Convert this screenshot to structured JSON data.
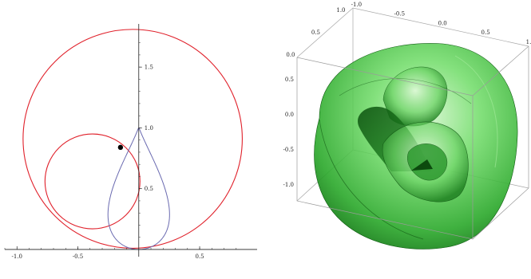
{
  "left_plot": {
    "x_ticks": [
      {
        "value": -1.0,
        "label": "-1.0"
      },
      {
        "value": -0.5,
        "label": "-0.5"
      },
      {
        "value": 0.5,
        "label": "0.5"
      }
    ],
    "y_ticks": [
      {
        "value": 0.5,
        "label": "0.5"
      },
      {
        "value": 1.0,
        "label": "1.0"
      },
      {
        "value": 1.5,
        "label": "1.5"
      }
    ],
    "x_range": [
      -1.1,
      0.88
    ],
    "y_range": [
      -0.02,
      1.85
    ],
    "colors": {
      "large_circle": "#e0202a",
      "small_circle": "#e0202a",
      "teardrop": "#6a6ab0",
      "point": "#000000",
      "axis": "#222222"
    },
    "large_circle": {
      "cx": -0.05,
      "cy": 0.91,
      "r": 0.9
    },
    "small_circle": {
      "cx": -0.38,
      "cy": 0.56,
      "r": 0.39
    },
    "point": {
      "x": -0.15,
      "y": 0.84
    }
  },
  "right_plot": {
    "top_ticks": [
      {
        "label": "-1.0"
      },
      {
        "label": "-0.5"
      },
      {
        "label": "0.0"
      },
      {
        "label": "0.5"
      },
      {
        "label": "1."
      }
    ],
    "upper_left_ticks": [
      {
        "label": "1.0"
      },
      {
        "label": "0.5"
      },
      {
        "label": "0.0"
      }
    ],
    "left_ticks": [
      {
        "label": "0.5"
      },
      {
        "label": "0.0"
      },
      {
        "label": "-0.5"
      },
      {
        "label": "-1.0"
      }
    ],
    "colors": {
      "surface": "#3cc83c",
      "surface_dark": "#0f6a12",
      "surface_light": "#c8f5c0",
      "box": "#9a9a9a"
    }
  }
}
